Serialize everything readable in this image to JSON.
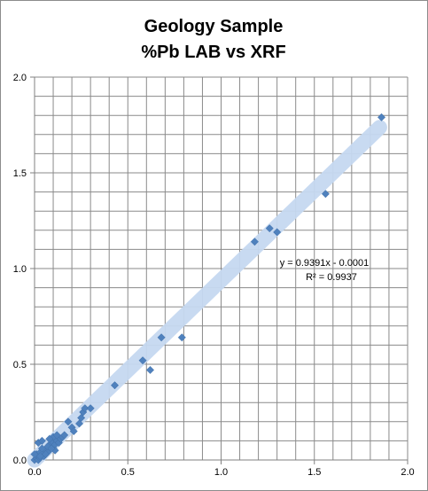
{
  "chart_data": {
    "type": "scatter",
    "title_lines": [
      "Geology Sample",
      "%Pb  LAB vs XRF"
    ],
    "xlabel": "",
    "ylabel": "",
    "xlim": [
      0,
      2.0
    ],
    "ylim": [
      0,
      2.0
    ],
    "x_ticks": [
      0,
      0.5,
      1.0,
      1.5,
      2.0
    ],
    "x_tick_labels": [
      "0.0",
      "0.5",
      "1.0",
      "1.5",
      "2.0"
    ],
    "y_ticks": [
      0,
      0.5,
      1.0,
      1.5,
      2.0
    ],
    "y_tick_labels": [
      "0.0",
      "0.5",
      "1.0",
      "1.5",
      "2.0"
    ],
    "grid": true,
    "minor_grid_step": 0.1,
    "legend": "none",
    "marker_color": "#4F81BD",
    "trendline_color": "#C6D9F1",
    "trendline": {
      "equation_text": "y = 0.9391x - 0.0001",
      "r2_text": "R² = 0.9937",
      "slope": 0.9391,
      "intercept": -0.0001,
      "x_range": [
        0.0,
        1.85
      ]
    },
    "series": [
      {
        "points": [
          [
            0.0,
            0.0
          ],
          [
            0.01,
            0.01
          ],
          [
            0.02,
            0.0
          ],
          [
            0.03,
            0.01
          ],
          [
            0.01,
            0.03
          ],
          [
            0.03,
            0.04
          ],
          [
            0.05,
            0.02
          ],
          [
            0.06,
            0.05
          ],
          [
            0.04,
            0.06
          ],
          [
            0.07,
            0.04
          ],
          [
            0.08,
            0.08
          ],
          [
            0.1,
            0.06
          ],
          [
            0.09,
            0.1
          ],
          [
            0.11,
            0.08
          ],
          [
            0.12,
            0.1
          ],
          [
            0.13,
            0.09
          ],
          [
            0.14,
            0.11
          ],
          [
            0.1,
            0.12
          ],
          [
            0.08,
            0.11
          ],
          [
            0.12,
            0.13
          ],
          [
            0.15,
            0.12
          ],
          [
            0.16,
            0.13
          ],
          [
            0.11,
            0.05
          ],
          [
            0.02,
            0.09
          ],
          [
            0.04,
            0.1
          ],
          [
            0.0,
            0.03
          ],
          [
            0.03,
            0.02
          ],
          [
            0.06,
            0.03
          ],
          [
            0.07,
            0.07
          ],
          [
            0.09,
            0.06
          ],
          [
            0.18,
            0.2
          ],
          [
            0.2,
            0.17
          ],
          [
            0.21,
            0.15
          ],
          [
            0.24,
            0.19
          ],
          [
            0.25,
            0.22
          ],
          [
            0.26,
            0.25
          ],
          [
            0.27,
            0.27
          ],
          [
            0.3,
            0.27
          ],
          [
            0.43,
            0.39
          ],
          [
            0.58,
            0.52
          ],
          [
            0.62,
            0.47
          ],
          [
            0.68,
            0.64
          ],
          [
            0.79,
            0.64
          ],
          [
            1.18,
            1.14
          ],
          [
            1.26,
            1.21
          ],
          [
            1.3,
            1.19
          ],
          [
            1.56,
            1.39
          ],
          [
            1.86,
            1.79
          ]
        ]
      }
    ]
  }
}
